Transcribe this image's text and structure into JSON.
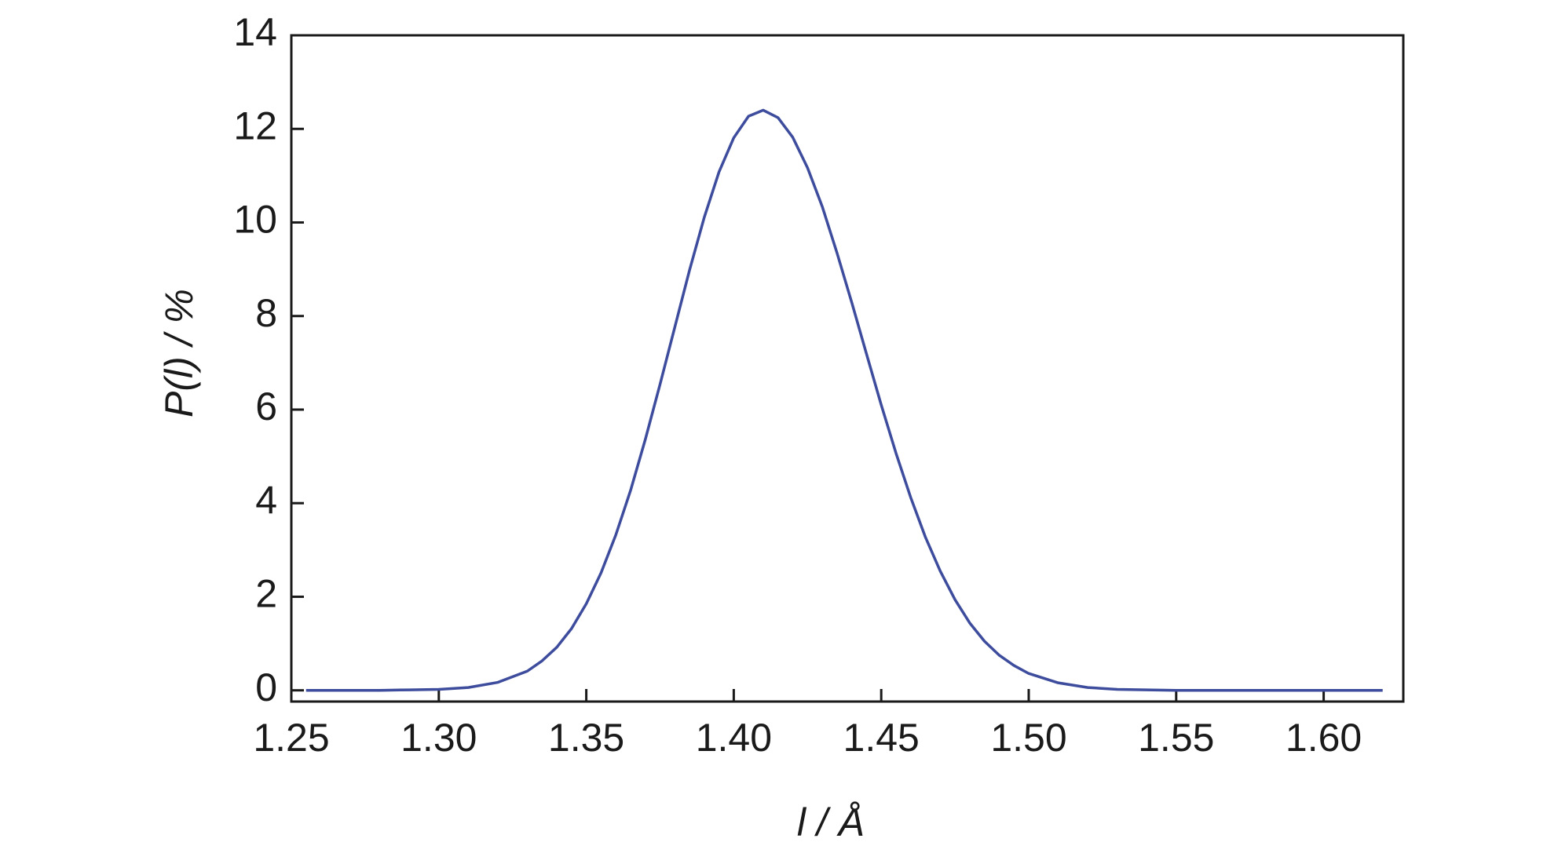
{
  "chart_data": {
    "type": "line",
    "xlabel": "l / Å",
    "ylabel": "P(l) / %",
    "x": [
      1.255,
      1.27,
      1.28,
      1.29,
      1.3,
      1.31,
      1.32,
      1.33,
      1.335,
      1.34,
      1.345,
      1.35,
      1.355,
      1.36,
      1.365,
      1.37,
      1.375,
      1.38,
      1.385,
      1.39,
      1.395,
      1.4,
      1.405,
      1.41,
      1.415,
      1.42,
      1.425,
      1.43,
      1.435,
      1.44,
      1.445,
      1.45,
      1.455,
      1.46,
      1.465,
      1.47,
      1.475,
      1.48,
      1.485,
      1.49,
      1.495,
      1.5,
      1.51,
      1.52,
      1.53,
      1.54,
      1.55,
      1.56,
      1.58,
      1.6,
      1.62
    ],
    "series": [
      {
        "color": "#3d4c9c",
        "values": [
          0,
          0,
          0,
          0.01,
          0.02,
          0.06,
          0.17,
          0.41,
          0.63,
          0.92,
          1.32,
          1.85,
          2.51,
          3.32,
          4.27,
          5.36,
          6.54,
          7.76,
          8.98,
          10.11,
          11.08,
          11.81,
          12.27,
          12.4,
          12.24,
          11.82,
          11.17,
          10.34,
          9.35,
          8.29,
          7.19,
          6.1,
          5.07,
          4.12,
          3.27,
          2.55,
          1.94,
          1.44,
          1.05,
          0.75,
          0.53,
          0.36,
          0.16,
          0.06,
          0.02,
          0.01,
          0,
          0,
          0,
          0,
          0
        ]
      }
    ],
    "xlim": [
      1.25,
      1.627
    ],
    "ylim": [
      -0.24,
      14
    ],
    "xticks": [
      1.25,
      {
        "value": 1.3,
        "label": "1.30"
      },
      1.35,
      {
        "value": 1.4,
        "label": "1.40"
      },
      1.45,
      {
        "value": 1.5,
        "label": "1.50"
      },
      1.55,
      {
        "value": 1.6,
        "label": "1.60"
      }
    ],
    "yticks": [
      0,
      2,
      4,
      6,
      8,
      10,
      12,
      14
    ],
    "grid": false
  }
}
